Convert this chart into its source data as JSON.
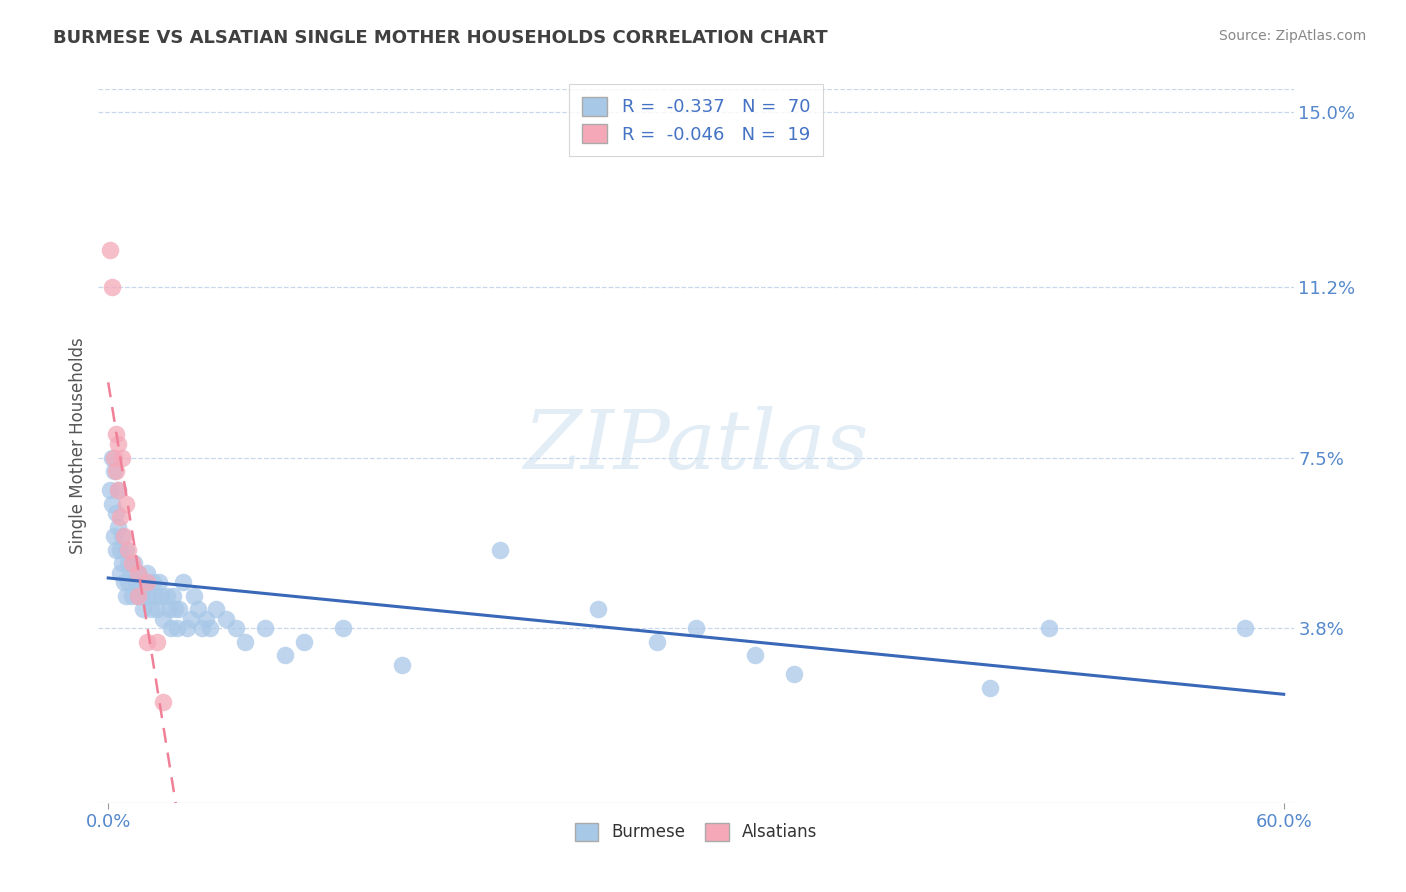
{
  "title": "BURMESE VS ALSATIAN SINGLE MOTHER HOUSEHOLDS CORRELATION CHART",
  "source": "Source: ZipAtlas.com",
  "ylabel": "Single Mother Households",
  "xlim": [
    -0.005,
    0.605
  ],
  "ylim": [
    0.0,
    0.155
  ],
  "yticks": [
    0.038,
    0.075,
    0.112,
    0.15
  ],
  "ytick_labels": [
    "3.8%",
    "7.5%",
    "11.2%",
    "15.0%"
  ],
  "xtick_positions": [
    0.0,
    0.6
  ],
  "xtick_labels": [
    "0.0%",
    "60.0%"
  ],
  "burmese_R": -0.337,
  "burmese_N": 70,
  "alsatian_R": -0.046,
  "alsatian_N": 19,
  "burmese_color": "#a8c8e8",
  "alsatian_color": "#f4a8b8",
  "burmese_line_color": "#3a68b8",
  "alsatian_line_color": "#f08098",
  "legend_text_color": "#4472c4",
  "axis_tick_color": "#5588cc",
  "title_color": "#404040",
  "source_color": "#888888",
  "grid_color": "#c8d8ec",
  "watermark": "ZIPatlas",
  "bg_color": "#ffffff",
  "burmese_scatter": [
    [
      0.001,
      0.068
    ],
    [
      0.002,
      0.075
    ],
    [
      0.002,
      0.065
    ],
    [
      0.003,
      0.072
    ],
    [
      0.003,
      0.058
    ],
    [
      0.004,
      0.063
    ],
    [
      0.004,
      0.055
    ],
    [
      0.005,
      0.068
    ],
    [
      0.005,
      0.06
    ],
    [
      0.006,
      0.055
    ],
    [
      0.006,
      0.05
    ],
    [
      0.007,
      0.058
    ],
    [
      0.007,
      0.052
    ],
    [
      0.008,
      0.048
    ],
    [
      0.009,
      0.055
    ],
    [
      0.009,
      0.045
    ],
    [
      0.01,
      0.052
    ],
    [
      0.01,
      0.048
    ],
    [
      0.011,
      0.05
    ],
    [
      0.012,
      0.045
    ],
    [
      0.013,
      0.052
    ],
    [
      0.014,
      0.048
    ],
    [
      0.015,
      0.05
    ],
    [
      0.015,
      0.045
    ],
    [
      0.016,
      0.048
    ],
    [
      0.017,
      0.045
    ],
    [
      0.018,
      0.042
    ],
    [
      0.019,
      0.048
    ],
    [
      0.02,
      0.05
    ],
    [
      0.021,
      0.045
    ],
    [
      0.022,
      0.042
    ],
    [
      0.023,
      0.048
    ],
    [
      0.024,
      0.045
    ],
    [
      0.025,
      0.042
    ],
    [
      0.026,
      0.048
    ],
    [
      0.027,
      0.045
    ],
    [
      0.028,
      0.04
    ],
    [
      0.03,
      0.045
    ],
    [
      0.031,
      0.042
    ],
    [
      0.032,
      0.038
    ],
    [
      0.033,
      0.045
    ],
    [
      0.034,
      0.042
    ],
    [
      0.035,
      0.038
    ],
    [
      0.036,
      0.042
    ],
    [
      0.038,
      0.048
    ],
    [
      0.04,
      0.038
    ],
    [
      0.042,
      0.04
    ],
    [
      0.044,
      0.045
    ],
    [
      0.046,
      0.042
    ],
    [
      0.048,
      0.038
    ],
    [
      0.05,
      0.04
    ],
    [
      0.052,
      0.038
    ],
    [
      0.055,
      0.042
    ],
    [
      0.06,
      0.04
    ],
    [
      0.065,
      0.038
    ],
    [
      0.07,
      0.035
    ],
    [
      0.08,
      0.038
    ],
    [
      0.09,
      0.032
    ],
    [
      0.1,
      0.035
    ],
    [
      0.12,
      0.038
    ],
    [
      0.15,
      0.03
    ],
    [
      0.2,
      0.055
    ],
    [
      0.25,
      0.042
    ],
    [
      0.28,
      0.035
    ],
    [
      0.3,
      0.038
    ],
    [
      0.33,
      0.032
    ],
    [
      0.35,
      0.028
    ],
    [
      0.45,
      0.025
    ],
    [
      0.48,
      0.038
    ],
    [
      0.58,
      0.038
    ]
  ],
  "alsatian_scatter": [
    [
      0.001,
      0.12
    ],
    [
      0.002,
      0.112
    ],
    [
      0.003,
      0.075
    ],
    [
      0.004,
      0.08
    ],
    [
      0.004,
      0.072
    ],
    [
      0.005,
      0.078
    ],
    [
      0.005,
      0.068
    ],
    [
      0.006,
      0.062
    ],
    [
      0.007,
      0.075
    ],
    [
      0.008,
      0.058
    ],
    [
      0.009,
      0.065
    ],
    [
      0.01,
      0.055
    ],
    [
      0.012,
      0.052
    ],
    [
      0.015,
      0.05
    ],
    [
      0.015,
      0.045
    ],
    [
      0.02,
      0.035
    ],
    [
      0.02,
      0.048
    ],
    [
      0.025,
      0.035
    ],
    [
      0.028,
      0.022
    ]
  ]
}
